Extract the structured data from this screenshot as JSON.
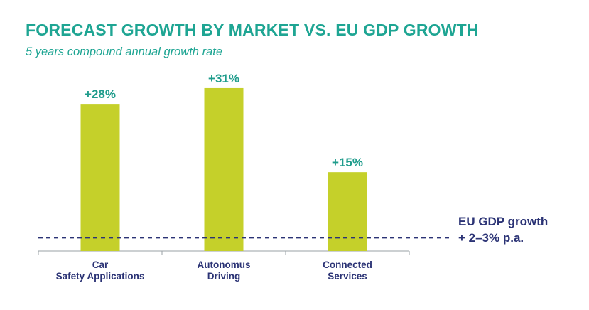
{
  "colors": {
    "title": "#1ea593",
    "bar": "#c5d02a",
    "value_label": "#1f9c8c",
    "reference": "#2b3375",
    "axis": "#9aa0a6",
    "category_label": "#2b3375"
  },
  "chart_data": {
    "type": "bar",
    "title": "FORECAST GROWTH BY MARKET VS. EU GDP GROWTH",
    "subtitle": "5 years compound annual growth rate",
    "categories": [
      [
        "Car",
        "Safety Applications"
      ],
      [
        "Autonomus",
        "Driving"
      ],
      [
        "Connected",
        "Services"
      ]
    ],
    "values": [
      28,
      31,
      15
    ],
    "value_labels": [
      "+28%",
      "+31%",
      "+15%"
    ],
    "ylim": [
      0,
      36
    ],
    "reference_line": {
      "value": 2.5,
      "style": "dashed",
      "label_lines": [
        "EU GDP growth",
        "+ 2–3% p.a."
      ]
    },
    "grid": false,
    "legend": "none"
  }
}
